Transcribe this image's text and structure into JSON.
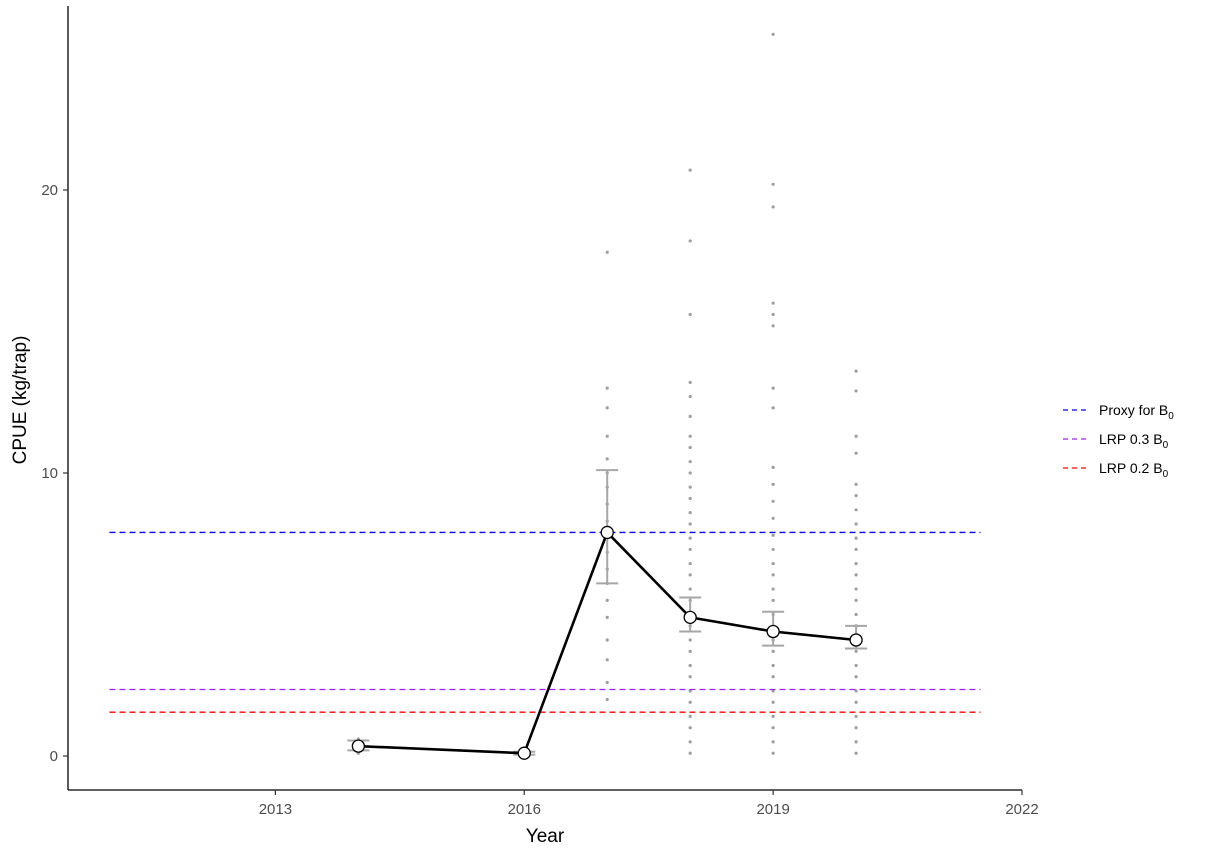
{
  "chart_data": {
    "type": "line",
    "xlabel": "Year",
    "ylabel": "CPUE (kg/trap)",
    "xlim": [
      2010.5,
      2022
    ],
    "ylim": [
      -1.2,
      26.5
    ],
    "x_ticks": [
      2013,
      2016,
      2019,
      2022
    ],
    "y_ticks": [
      0,
      10,
      20
    ],
    "grid": false,
    "legend_position": "right",
    "series": [
      {
        "x": [
          2014,
          2016,
          2017,
          2018,
          2019,
          2020
        ],
        "y": [
          0.35,
          0.1,
          7.9,
          4.9,
          4.4,
          4.1
        ],
        "ci_low": [
          0.2,
          0.05,
          6.1,
          4.4,
          3.9,
          3.8
        ],
        "ci_high": [
          0.55,
          0.15,
          10.1,
          5.6,
          5.1,
          4.6
        ],
        "color": "#000000"
      }
    ],
    "reference_lines": [
      {
        "label_main": "Proxy for B",
        "label_sub": "0",
        "y": 7.9,
        "x_range": [
          2011,
          2021.5
        ],
        "color": "#0000ff"
      },
      {
        "label_main": "LRP 0.3 B",
        "label_sub": "0",
        "y": 2.35,
        "x_range": [
          2011,
          2021.5
        ],
        "color": "#a020f0"
      },
      {
        "label_main": "LRP 0.2 B",
        "label_sub": "0",
        "y": 1.55,
        "x_range": [
          2011,
          2021.5
        ],
        "color": "#ff0000"
      }
    ],
    "raw_observations": [
      {
        "x": 2014,
        "y": [
          0.1,
          0.2,
          0.3,
          0.4,
          0.5,
          0.6
        ]
      },
      {
        "x": 2016,
        "y": [
          0.05,
          0.1,
          0.15
        ]
      },
      {
        "x": 2017,
        "y": [
          2.0,
          2.6,
          3.4,
          4.1,
          4.9,
          5.5,
          6.1,
          6.6,
          7.2,
          7.8,
          8.3,
          8.9,
          9.5,
          10.0,
          10.5,
          11.3,
          12.3,
          13.0,
          17.8
        ]
      },
      {
        "x": 2018,
        "y": [
          0.1,
          0.5,
          1.0,
          1.4,
          1.9,
          2.3,
          2.8,
          3.2,
          3.7,
          4.1,
          4.6,
          5.0,
          5.5,
          5.9,
          6.4,
          6.8,
          7.3,
          7.7,
          8.2,
          8.6,
          9.1,
          9.5,
          10.0,
          10.4,
          10.9,
          11.3,
          12.0,
          12.7,
          13.2,
          15.6,
          18.2,
          20.7
        ]
      },
      {
        "x": 2019,
        "y": [
          0.1,
          0.5,
          1.0,
          1.4,
          1.9,
          2.3,
          2.8,
          3.2,
          3.7,
          4.1,
          4.6,
          5.0,
          5.5,
          5.9,
          6.4,
          6.8,
          7.3,
          7.8,
          8.4,
          9.0,
          9.6,
          10.2,
          12.3,
          13.0,
          15.2,
          15.6,
          16.0,
          19.4,
          20.2,
          25.5
        ]
      },
      {
        "x": 2020,
        "y": [
          0.1,
          0.5,
          1.0,
          1.4,
          1.9,
          2.3,
          2.8,
          3.2,
          3.7,
          4.1,
          4.6,
          5.0,
          5.5,
          5.9,
          6.4,
          6.8,
          7.3,
          7.7,
          8.2,
          8.7,
          9.2,
          9.6,
          10.7,
          11.3,
          12.9,
          13.6
        ]
      }
    ]
  }
}
